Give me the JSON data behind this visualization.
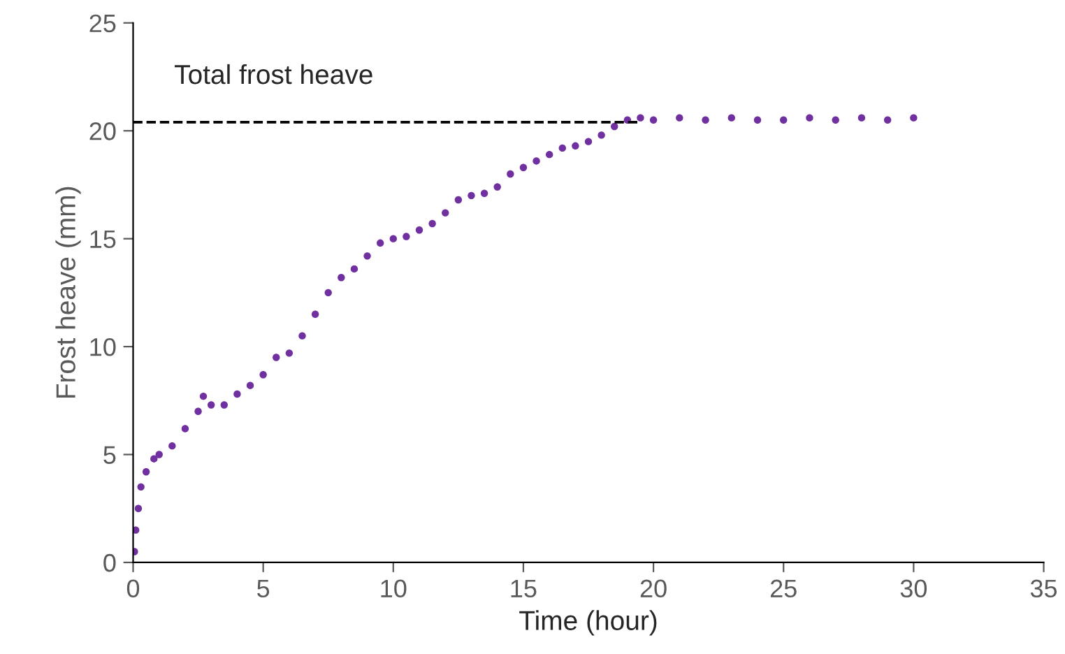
{
  "chart_data": {
    "type": "scatter",
    "xlabel": "Time (hour)",
    "ylabel": "Frost heave (mm)",
    "xlim": [
      0,
      35
    ],
    "xticks": [
      0,
      5,
      10,
      15,
      20,
      25,
      30,
      35
    ],
    "ylim": [
      0,
      25
    ],
    "yticks": [
      0,
      5,
      10,
      15,
      20,
      25
    ],
    "grid": false,
    "marker": "circle",
    "annotations": [
      "Total frost heave"
    ],
    "series": [
      {
        "type": "line",
        "color": "#000000",
        "line_style": "dashed",
        "marker": "none",
        "x": [
          0,
          19.5
        ],
        "values": [
          20.4,
          20.4
        ]
      },
      {
        "color": "#7030a0",
        "x": [
          0.05,
          0.1,
          0.2,
          0.3,
          0.5,
          0.8,
          1,
          1.5,
          2,
          2.5,
          2.7,
          3,
          3.5,
          4,
          4.5,
          5,
          5.5,
          6,
          6.5,
          7,
          7.5,
          8,
          8.5,
          9,
          9.5,
          10,
          10.5,
          11,
          11.5,
          12,
          12.5,
          13,
          13.5,
          14,
          14.5,
          15,
          15.5,
          16,
          16.5,
          17,
          17.5,
          18,
          18.5,
          19,
          19.5,
          20,
          21,
          22,
          23,
          24,
          25,
          26,
          27,
          28,
          29,
          30
        ],
        "values": [
          0.5,
          1.5,
          2.5,
          3.5,
          4.2,
          4.8,
          5.0,
          5.4,
          6.2,
          7.0,
          7.7,
          7.3,
          7.3,
          7.8,
          8.2,
          8.7,
          9.5,
          9.7,
          10.5,
          11.5,
          12.5,
          13.2,
          13.6,
          14.2,
          14.8,
          15.0,
          15.1,
          15.4,
          15.7,
          16.2,
          16.8,
          17.0,
          17.1,
          17.4,
          18.0,
          18.3,
          18.6,
          18.9,
          19.2,
          19.3,
          19.5,
          19.8,
          20.2,
          20.5,
          20.6,
          20.5,
          20.6,
          20.5,
          20.6,
          20.5,
          20.5,
          20.6,
          20.5,
          20.6,
          20.5,
          20.6
        ]
      }
    ]
  }
}
